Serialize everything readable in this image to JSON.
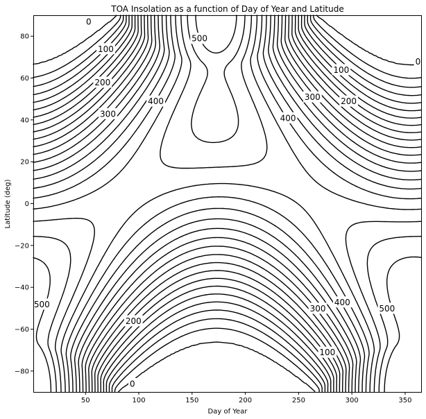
{
  "chart_data": {
    "type": "contour",
    "title": "TOA Insolation as a function of Day of Year and Latitude",
    "xlabel": "Day of Year",
    "ylabel": "Latitude (deg)",
    "xlim": [
      1,
      365
    ],
    "ylim": [
      -90,
      90
    ],
    "xticks": [
      50,
      100,
      150,
      200,
      250,
      300,
      350
    ],
    "yticks": [
      -80,
      -60,
      -40,
      -20,
      0,
      20,
      40,
      60,
      80
    ],
    "contour_interval": 25,
    "contour_levels_min": 0,
    "contour_levels_max": 500,
    "line_color": "#000000",
    "contour_labels": [
      {
        "text": "0",
        "x": 53,
        "y": 87
      },
      {
        "text": "100",
        "x": 69,
        "y": 74
      },
      {
        "text": "200",
        "x": 66,
        "y": 58
      },
      {
        "text": "300",
        "x": 71,
        "y": 43
      },
      {
        "text": "400",
        "x": 116,
        "y": 49
      },
      {
        "text": "500",
        "x": 157,
        "y": 79
      },
      {
        "text": "100",
        "x": 290,
        "y": 64
      },
      {
        "text": "300",
        "x": 263,
        "y": 51
      },
      {
        "text": "200",
        "x": 297,
        "y": 49
      },
      {
        "text": "400",
        "x": 240,
        "y": 41
      },
      {
        "text": "0",
        "x": 362,
        "y": 68
      },
      {
        "text": "500",
        "x": 9,
        "y": -48
      },
      {
        "text": "200",
        "x": 95,
        "y": -56
      },
      {
        "text": "0",
        "x": 94,
        "y": -86
      },
      {
        "text": "300",
        "x": 268,
        "y": -50
      },
      {
        "text": "400",
        "x": 291,
        "y": -47
      },
      {
        "text": "100",
        "x": 277,
        "y": -71
      },
      {
        "text": "500",
        "x": 333,
        "y": -50
      }
    ]
  }
}
